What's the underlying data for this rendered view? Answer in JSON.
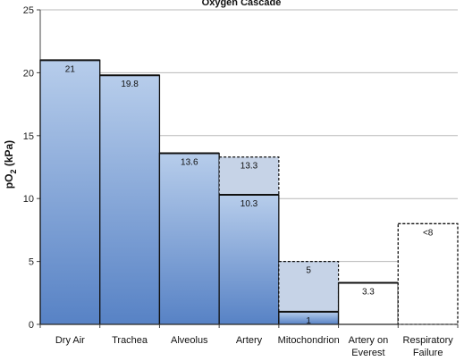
{
  "chart_data": {
    "type": "bar",
    "title": "Oxygen Cascade",
    "ylabel": "pO",
    "ylabel_sub": "2",
    "ylabel_unit": " (kPa)",
    "ylim": [
      0,
      25
    ],
    "yticks": [
      "0",
      "5",
      "10",
      "15",
      "20",
      "25"
    ],
    "grid": true,
    "categories": [
      [
        "Dry Air"
      ],
      [
        "Trachea"
      ],
      [
        "Alveolus"
      ],
      [
        "Artery"
      ],
      [
        "Mitochondrion"
      ],
      [
        "Artery on",
        "Everest"
      ],
      [
        "Respiratory",
        "Failure"
      ]
    ],
    "bars": [
      {
        "value": 21,
        "label": "21",
        "style": "solid"
      },
      {
        "value": 19.8,
        "label": "19.8",
        "style": "solid"
      },
      {
        "value": 13.6,
        "label": "13.6",
        "style": "solid"
      },
      {
        "value": 10.3,
        "label": "10.3",
        "style": "solid",
        "range_top": 13.3,
        "range_label": "13.3"
      },
      {
        "value": 1,
        "label": "1",
        "style": "solid",
        "range_top": 5,
        "range_label": "5"
      },
      {
        "value": 3.3,
        "label": "3.3",
        "style": "white"
      },
      {
        "value": 8,
        "label": "<8",
        "style": "dashed-white"
      }
    ],
    "colors": {
      "bar_top": "#b7cdeb",
      "bar_bottom": "#5782c5",
      "range_fill": "#c6d3e7",
      "grid": "#b8b8b8",
      "outline": "#111111"
    }
  }
}
